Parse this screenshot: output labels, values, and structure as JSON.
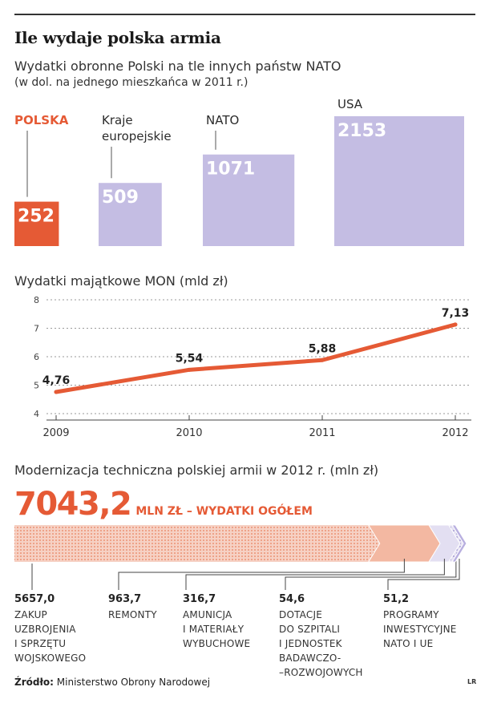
{
  "title": "Ile wydaje polska armia",
  "section1": {
    "subtitle_line1": "Wydatki obronne Polski na tle innych państw NATO",
    "subtitle_line2": "(w dol. na jednego mieszkańca w 2011 r.)"
  },
  "section2": {
    "subtitle": "Wydatki majątkowe MON (mld zł)"
  },
  "section3": {
    "subtitle": "Modernizacja techniczna polskiej armii w 2012 r. (mln zł)",
    "total_value": "7043,2",
    "total_label": "MLN ZŁ – WYDATKI OGÓŁEM"
  },
  "source": {
    "label": "Źródło:",
    "text": "Ministerstwo Obrony Narodowej"
  },
  "logo": "LR",
  "colors": {
    "orange": "#e55a35",
    "purple": "#c4bde3",
    "text": "#2b2b2b",
    "grid": "#9a9a9a"
  },
  "chart_data": [
    {
      "type": "bar",
      "categories": [
        "POLSKA",
        "Kraje europejskie",
        "NATO",
        "USA"
      ],
      "category_display": [
        "POLSKA",
        "Kraje\neuropejskie",
        "NATO",
        "USA"
      ],
      "values": [
        252,
        509,
        1071,
        2153
      ],
      "value_labels": [
        "252",
        "509",
        "1071",
        "2153"
      ],
      "highlight": "POLSKA"
    },
    {
      "type": "line",
      "x": [
        "2009",
        "2010",
        "2011",
        "2012"
      ],
      "values": [
        4.76,
        5.54,
        5.88,
        7.13
      ],
      "value_labels": [
        "4,76",
        "5,54",
        "5,88",
        "7,13"
      ],
      "ylim": [
        4,
        8
      ],
      "yticks": [
        4,
        5,
        6,
        7,
        8
      ],
      "grid": true
    },
    {
      "type": "bar",
      "orientation": "stacked-horizontal",
      "total": 7043.2,
      "segments": [
        {
          "value": 5657.0,
          "value_label": "5657,0",
          "label": "ZAKUP\nUZBROJENIA\nI SPRZĘTU\nWOJSKOWEGO"
        },
        {
          "value": 963.7,
          "value_label": "963,7",
          "label": "REMONTY"
        },
        {
          "value": 316.7,
          "value_label": "316,7",
          "label": "AMUNICJA\nI MATERIAŁY\nWYBUCHOWE"
        },
        {
          "value": 54.6,
          "value_label": "54,6",
          "label": "DOTACJE\nDO SZPITALI\nI JEDNOSTEK\nBADAWCZO-\n–ROZWOJOWYCH"
        },
        {
          "value": 51.2,
          "value_label": "51,2",
          "label": "PROGRAMY\nINWESTYCYJNE\nNATO I UE"
        }
      ]
    }
  ]
}
